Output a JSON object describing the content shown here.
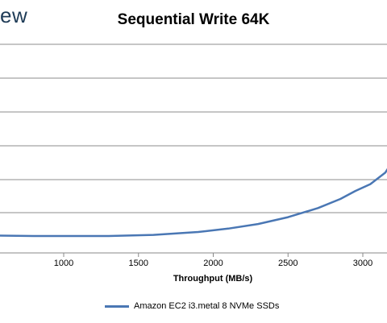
{
  "brand": {
    "text": "ew"
  },
  "chart_data": {
    "type": "line",
    "title": "Sequential Write 64K",
    "xlabel": "Throughput (MB/s)",
    "ylabel": "",
    "xlim": [
      500,
      3200
    ],
    "x_ticks": [
      1000,
      1500,
      2000,
      2500,
      3000
    ],
    "grid": true,
    "legend_position": "bottom",
    "series": [
      {
        "name": "Amazon EC2 i3.metal 8 NVMe SSDs",
        "color": "#4a77b4",
        "x": [
          500,
          800,
          1000,
          1300,
          1600,
          1900,
          2100,
          2300,
          2500,
          2700,
          2850,
          2950,
          3050,
          3150,
          3200
        ],
        "y": [
          0.5,
          0.45,
          0.45,
          0.45,
          0.55,
          0.8,
          1.1,
          1.5,
          2.1,
          2.9,
          3.7,
          4.4,
          5.0,
          6.0,
          7.0
        ]
      }
    ]
  }
}
